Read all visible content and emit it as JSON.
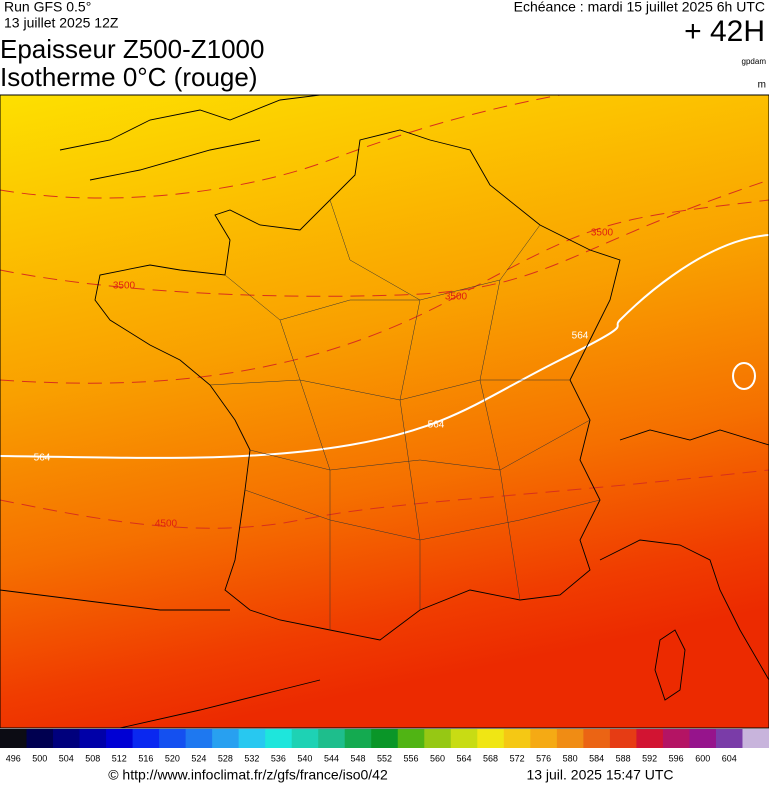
{
  "header": {
    "run": "Run GFS 0.5°",
    "run_date": "13 juillet 2025 12Z",
    "title_line1": "Epaisseur Z500-Z1000",
    "title_line2": "Isotherme 0°C (rouge)",
    "echeance": "Echéance : mardi 15 juillet 2025 6h UTC",
    "lead": "+ 42H",
    "unit_thickness": "gpdam",
    "unit_iso0": "m"
  },
  "map": {
    "contour_labels": [
      "3500",
      "3500",
      "3500",
      "564",
      "564",
      "564",
      "4500"
    ]
  },
  "colorbar": {
    "labels": [
      496,
      500,
      504,
      508,
      512,
      516,
      520,
      524,
      528,
      532,
      536,
      540,
      544,
      548,
      552,
      556,
      560,
      564,
      568,
      572,
      576,
      580,
      584,
      588,
      592,
      596,
      600,
      604
    ],
    "colors": [
      "#0c0c14",
      "#000050",
      "#00007c",
      "#0000a8",
      "#0000d4",
      "#0a28f0",
      "#1450f0",
      "#1e78f0",
      "#28a0f0",
      "#28c8f0",
      "#1ee6dc",
      "#1ed2b4",
      "#1ebe8c",
      "#14aa50",
      "#0a9628",
      "#50b414",
      "#96c814",
      "#c8dc14",
      "#f0e614",
      "#f5c814",
      "#f5aa14",
      "#f08c14",
      "#eb6414",
      "#e63c14",
      "#d21432",
      "#b41464",
      "#96148c",
      "#7a3ca8",
      "#c8b4dc"
    ]
  },
  "footer": {
    "url": "© http://www.infoclimat.fr/z/gfs/france/iso0/42",
    "timestamp": "13 juil. 2025 15:47 UTC"
  }
}
